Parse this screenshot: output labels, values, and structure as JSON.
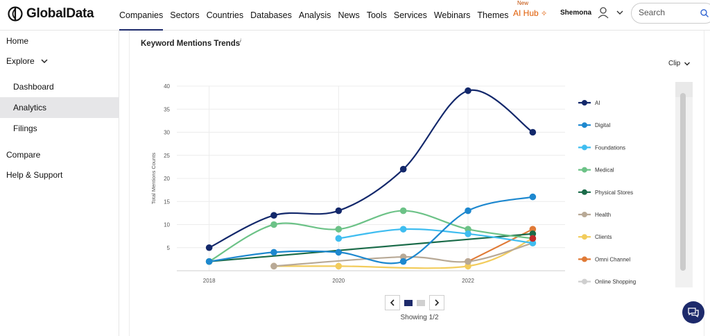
{
  "brand": {
    "name": "GlobalData"
  },
  "nav": {
    "items": [
      "Companies",
      "Sectors",
      "Countries",
      "Databases",
      "Analysis",
      "News",
      "Tools",
      "Services",
      "Webinars",
      "Themes"
    ]
  },
  "aihub": {
    "badge": "New",
    "label": "AI Hub"
  },
  "user": {
    "name": "Shemona"
  },
  "search": {
    "placeholder": "Search"
  },
  "sidebar": {
    "home": "Home",
    "explore": "Explore",
    "subitems": [
      "Dashboard",
      "Analytics",
      "Filings"
    ],
    "compare": "Compare",
    "help": "Help & Support"
  },
  "card": {
    "title": "Keyword Mentions Trends",
    "info": "i",
    "clip_label": "Clip"
  },
  "pager": {
    "showing": "Showing 1/2"
  },
  "colors": {
    "accent": "#1d2a6b",
    "active_bg": "#e6e6e8",
    "aihub": "#e05a00"
  },
  "icons": [
    "globe-logo-icon",
    "sparkle-icon",
    "user-icon",
    "chevron-down-icon",
    "search-icon",
    "chevron-left-icon",
    "chevron-right-icon",
    "chat-icon"
  ],
  "chart_data": {
    "type": "line",
    "title": "Keyword Mentions Trends",
    "xlabel": "",
    "ylabel": "Total Mentions Counts",
    "xlim": [
      2017.5,
      2023.5
    ],
    "ylim": [
      0,
      40
    ],
    "xticks": [
      "2018",
      "2020",
      "2022"
    ],
    "yticks": [
      5,
      10,
      15,
      20,
      25,
      30,
      35,
      40
    ],
    "grid": true,
    "legend": "right",
    "series": [
      {
        "name": "AI",
        "color": "#13286b",
        "curve": "smooth",
        "points": [
          [
            2018,
            5
          ],
          [
            2019,
            12
          ],
          [
            2020,
            13
          ],
          [
            2021,
            22
          ],
          [
            2022,
            39
          ],
          [
            2023,
            30
          ]
        ]
      },
      {
        "name": "Digital",
        "color": "#1d88cf",
        "curve": "smooth",
        "points": [
          [
            2018,
            2
          ],
          [
            2019,
            4
          ],
          [
            2020,
            4
          ],
          [
            2021,
            2
          ],
          [
            2022,
            13
          ],
          [
            2023,
            16
          ]
        ]
      },
      {
        "name": "Foundations",
        "color": "#3fbdf0",
        "curve": "smooth",
        "points": [
          [
            2020,
            7
          ],
          [
            2021,
            9
          ],
          [
            2022,
            8
          ],
          [
            2023,
            6
          ]
        ]
      },
      {
        "name": "Medical",
        "color": "#6cc287",
        "curve": "smooth",
        "points": [
          [
            2018,
            2
          ],
          [
            2019,
            10
          ],
          [
            2020,
            9
          ],
          [
            2021,
            13
          ],
          [
            2022,
            9
          ],
          [
            2023,
            7
          ]
        ]
      },
      {
        "name": "Physical Stores",
        "color": "#1a6b49",
        "curve": "linear",
        "points": [
          [
            2018,
            2
          ],
          [
            2023,
            8
          ]
        ]
      },
      {
        "name": "Health",
        "color": "#b8a996",
        "curve": "smooth",
        "points": [
          [
            2019,
            1
          ],
          [
            2021,
            3
          ],
          [
            2022,
            2
          ],
          [
            2023,
            6
          ]
        ]
      },
      {
        "name": "Clients",
        "color": "#f2cc5c",
        "curve": "smooth",
        "points": [
          [
            2019,
            1
          ],
          [
            2020,
            1
          ],
          [
            2022,
            1
          ],
          [
            2023,
            7
          ]
        ]
      },
      {
        "name": "Omni Channel",
        "color": "#e07a36",
        "curve": "linear",
        "points": [
          [
            2022,
            2
          ],
          [
            2023,
            9
          ]
        ]
      },
      {
        "name": "Online Shopping",
        "color": "#cfcfcf",
        "curve": "linear",
        "points": []
      }
    ],
    "extra_points": [
      {
        "color": "#c22a2a",
        "x": 2023,
        "y": 7
      }
    ]
  }
}
